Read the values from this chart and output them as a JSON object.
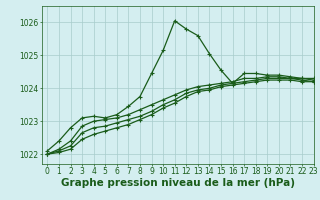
{
  "background_color": "#d4eef0",
  "grid_color": "#a8cccc",
  "line_color": "#1a5c1a",
  "title": "Graphe pression niveau de la mer (hPa)",
  "xlim": [
    -0.5,
    23
  ],
  "ylim": [
    1021.7,
    1026.5
  ],
  "yticks": [
    1022,
    1023,
    1024,
    1025,
    1026
  ],
  "xticks": [
    0,
    1,
    2,
    3,
    4,
    5,
    6,
    7,
    8,
    9,
    10,
    11,
    12,
    13,
    14,
    15,
    16,
    17,
    18,
    19,
    20,
    21,
    22,
    23
  ],
  "series": [
    [
      1022.1,
      1022.4,
      1022.8,
      1023.1,
      1023.15,
      1023.1,
      1023.2,
      1023.45,
      1023.75,
      1024.45,
      1025.15,
      1026.05,
      1025.8,
      1025.6,
      1025.05,
      1024.55,
      1024.15,
      1024.45,
      1024.45,
      1024.4,
      1024.4,
      1024.35,
      1024.3,
      1024.3
    ],
    [
      1022.0,
      1022.15,
      1022.4,
      1022.85,
      1023.0,
      1023.05,
      1023.1,
      1023.2,
      1023.35,
      1023.5,
      1023.65,
      1023.8,
      1023.95,
      1024.05,
      1024.1,
      1024.15,
      1024.2,
      1024.3,
      1024.3,
      1024.35,
      1024.35,
      1024.3,
      1024.3,
      1024.25
    ],
    [
      1022.0,
      1022.1,
      1022.25,
      1022.65,
      1022.8,
      1022.85,
      1022.95,
      1023.05,
      1023.15,
      1023.3,
      1023.5,
      1023.65,
      1023.85,
      1023.95,
      1024.0,
      1024.1,
      1024.15,
      1024.2,
      1024.25,
      1024.3,
      1024.3,
      1024.3,
      1024.25,
      1024.2
    ],
    [
      1022.0,
      1022.05,
      1022.15,
      1022.45,
      1022.6,
      1022.7,
      1022.8,
      1022.9,
      1023.05,
      1023.2,
      1023.4,
      1023.55,
      1023.75,
      1023.9,
      1023.95,
      1024.05,
      1024.1,
      1024.15,
      1024.2,
      1024.25,
      1024.25,
      1024.25,
      1024.2,
      1024.2
    ]
  ],
  "linestyles": [
    "-",
    "-",
    "-",
    "-"
  ],
  "marker": "+",
  "markersize": 3,
  "markeredgewidth": 0.8,
  "linewidth": 0.9,
  "title_fontsize": 7.5,
  "tick_fontsize": 5.5
}
